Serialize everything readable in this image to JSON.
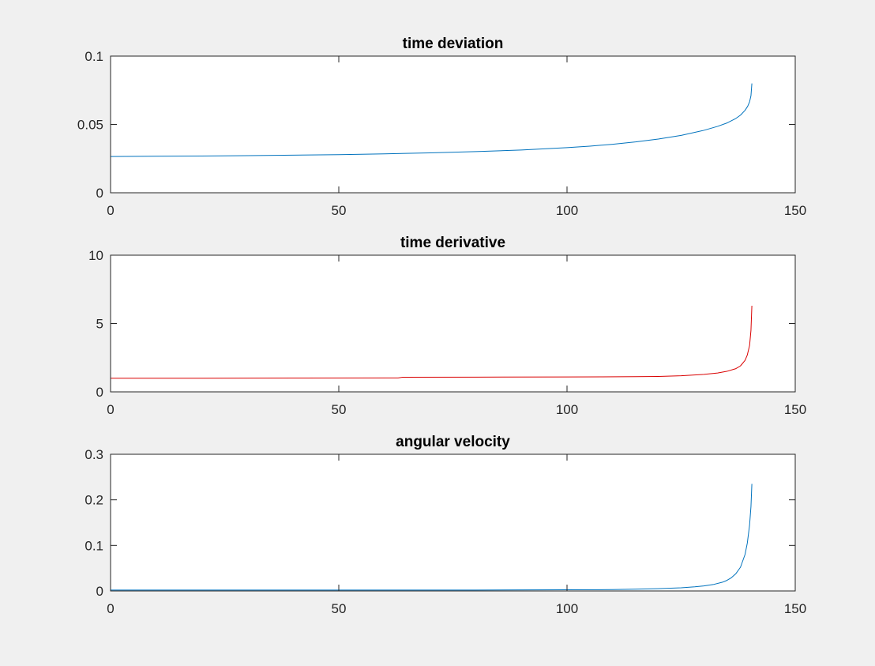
{
  "figure": {
    "background": "#f0f0f0",
    "axes_background": "#ffffff",
    "axes_color": "#262626"
  },
  "chart_data": [
    {
      "type": "line",
      "title": "time deviation",
      "xlabel": "",
      "ylabel": "",
      "xlim": [
        0,
        150
      ],
      "ylim": [
        0,
        0.1
      ],
      "xticks": [
        0,
        50,
        100,
        150
      ],
      "xtick_labels": [
        "0",
        "50",
        "100",
        "150"
      ],
      "yticks": [
        0,
        0.05,
        0.1
      ],
      "ytick_labels": [
        "0",
        "0.05",
        "0.1"
      ],
      "grid": false,
      "series": [
        {
          "color": "#0072bd",
          "x": [
            0,
            10,
            20,
            30,
            40,
            50,
            60,
            70,
            80,
            90,
            100,
            105,
            110,
            115,
            120,
            125,
            130,
            133,
            135,
            137,
            138,
            139,
            139.6,
            140,
            140.3,
            140.5
          ],
          "y": [
            0.0265,
            0.0267,
            0.0269,
            0.0272,
            0.0275,
            0.0279,
            0.0285,
            0.0292,
            0.0301,
            0.0313,
            0.033,
            0.0341,
            0.0355,
            0.0372,
            0.0393,
            0.042,
            0.0457,
            0.0486,
            0.051,
            0.0544,
            0.0568,
            0.0603,
            0.0634,
            0.0666,
            0.071,
            0.08
          ]
        }
      ]
    },
    {
      "type": "line",
      "title": "time derivative",
      "xlabel": "",
      "ylabel": "",
      "xlim": [
        0,
        150
      ],
      "ylim": [
        0,
        10
      ],
      "xticks": [
        0,
        50,
        100,
        150
      ],
      "xtick_labels": [
        "0",
        "50",
        "100",
        "150"
      ],
      "yticks": [
        0,
        5,
        10
      ],
      "ytick_labels": [
        "0",
        "5",
        "10"
      ],
      "grid": false,
      "series": [
        {
          "color": "#d90000",
          "x": [
            0,
            20,
            40,
            60,
            63,
            64,
            80,
            100,
            115,
            120,
            125,
            130,
            133,
            135,
            137,
            138,
            139,
            139.5,
            140,
            140.3,
            140.5
          ],
          "y": [
            1.0,
            1.0,
            1.01,
            1.02,
            1.02,
            1.07,
            1.08,
            1.09,
            1.11,
            1.13,
            1.18,
            1.28,
            1.38,
            1.5,
            1.7,
            1.9,
            2.3,
            2.7,
            3.4,
            4.5,
            6.3
          ]
        }
      ]
    },
    {
      "type": "line",
      "title": "angular velocity",
      "xlabel": "",
      "ylabel": "",
      "xlim": [
        0,
        150
      ],
      "ylim": [
        0,
        0.3
      ],
      "xticks": [
        0,
        50,
        100,
        150
      ],
      "xtick_labels": [
        "0",
        "50",
        "100",
        "150"
      ],
      "yticks": [
        0,
        0.1,
        0.2,
        0.3
      ],
      "ytick_labels": [
        "0",
        "0.1",
        "0.2",
        "0.3"
      ],
      "grid": false,
      "series": [
        {
          "color": "#0072bd",
          "x": [
            0,
            20,
            40,
            60,
            80,
            100,
            110,
            115,
            120,
            125,
            128,
            130,
            132,
            134,
            135,
            136,
            137,
            138,
            139,
            139.5,
            140,
            140.3,
            140.5
          ],
          "y": [
            0.002,
            0.002,
            0.002,
            0.002,
            0.002,
            0.0025,
            0.003,
            0.004,
            0.005,
            0.007,
            0.009,
            0.011,
            0.014,
            0.019,
            0.023,
            0.029,
            0.038,
            0.052,
            0.08,
            0.105,
            0.145,
            0.185,
            0.235
          ]
        }
      ]
    }
  ]
}
